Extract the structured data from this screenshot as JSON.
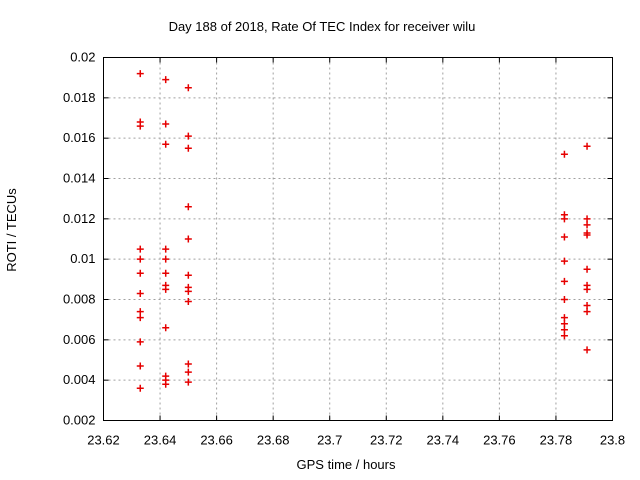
{
  "chart_data": {
    "type": "scatter",
    "title": "Day 188 of 2018, Rate Of TEC Index for receiver wilu",
    "xlabel": "GPS time / hours",
    "ylabel": "ROTI / TECUs",
    "xlim": [
      23.62,
      23.8
    ],
    "ylim": [
      0.002,
      0.02
    ],
    "grid": true,
    "legend": false,
    "marker": {
      "shape": "plus",
      "color": "#e60000",
      "size": 7
    },
    "grid_color": "#a0a0a0",
    "border_color": "#000000",
    "xticks": {
      "values": [
        23.62,
        23.64,
        23.66,
        23.68,
        23.7,
        23.72,
        23.74,
        23.76,
        23.78,
        23.8
      ],
      "labels": [
        "23.62",
        "23.64",
        "23.66",
        "23.68",
        "23.7",
        "23.72",
        "23.74",
        "23.76",
        "23.78",
        "23.8"
      ]
    },
    "yticks": {
      "values": [
        0.002,
        0.004,
        0.006,
        0.008,
        0.01,
        0.012,
        0.014,
        0.016,
        0.018,
        0.02
      ],
      "labels": [
        "0.002",
        "0.004",
        "0.006",
        "0.008",
        "0.01",
        "0.012",
        "0.014",
        "0.016",
        "0.018",
        "0.02"
      ]
    },
    "points": [
      [
        23.633,
        0.0192
      ],
      [
        23.633,
        0.0168
      ],
      [
        23.633,
        0.0166
      ],
      [
        23.633,
        0.0105
      ],
      [
        23.633,
        0.01
      ],
      [
        23.633,
        0.0093
      ],
      [
        23.633,
        0.0083
      ],
      [
        23.633,
        0.0074
      ],
      [
        23.633,
        0.0071
      ],
      [
        23.633,
        0.0059
      ],
      [
        23.633,
        0.0047
      ],
      [
        23.633,
        0.0036
      ],
      [
        23.642,
        0.0189
      ],
      [
        23.642,
        0.0167
      ],
      [
        23.642,
        0.0157
      ],
      [
        23.642,
        0.0105
      ],
      [
        23.642,
        0.01
      ],
      [
        23.642,
        0.0093
      ],
      [
        23.642,
        0.0087
      ],
      [
        23.642,
        0.0085
      ],
      [
        23.642,
        0.0066
      ],
      [
        23.642,
        0.0042
      ],
      [
        23.642,
        0.004
      ],
      [
        23.642,
        0.0038
      ],
      [
        23.65,
        0.0185
      ],
      [
        23.65,
        0.0161
      ],
      [
        23.65,
        0.0155
      ],
      [
        23.65,
        0.0126
      ],
      [
        23.65,
        0.011
      ],
      [
        23.65,
        0.0092
      ],
      [
        23.65,
        0.0086
      ],
      [
        23.65,
        0.0084
      ],
      [
        23.65,
        0.0079
      ],
      [
        23.65,
        0.0048
      ],
      [
        23.65,
        0.0044
      ],
      [
        23.65,
        0.0039
      ],
      [
        23.783,
        0.0152
      ],
      [
        23.783,
        0.0122
      ],
      [
        23.783,
        0.012
      ],
      [
        23.783,
        0.0111
      ],
      [
        23.783,
        0.0099
      ],
      [
        23.783,
        0.0089
      ],
      [
        23.783,
        0.008
      ],
      [
        23.783,
        0.0071
      ],
      [
        23.783,
        0.0068
      ],
      [
        23.783,
        0.0065
      ],
      [
        23.783,
        0.0062
      ],
      [
        23.791,
        0.0156
      ],
      [
        23.791,
        0.012
      ],
      [
        23.791,
        0.0117
      ],
      [
        23.791,
        0.0113
      ],
      [
        23.791,
        0.0112
      ],
      [
        23.791,
        0.0095
      ],
      [
        23.791,
        0.0087
      ],
      [
        23.791,
        0.0085
      ],
      [
        23.791,
        0.0077
      ],
      [
        23.791,
        0.0074
      ],
      [
        23.791,
        0.0055
      ]
    ]
  }
}
